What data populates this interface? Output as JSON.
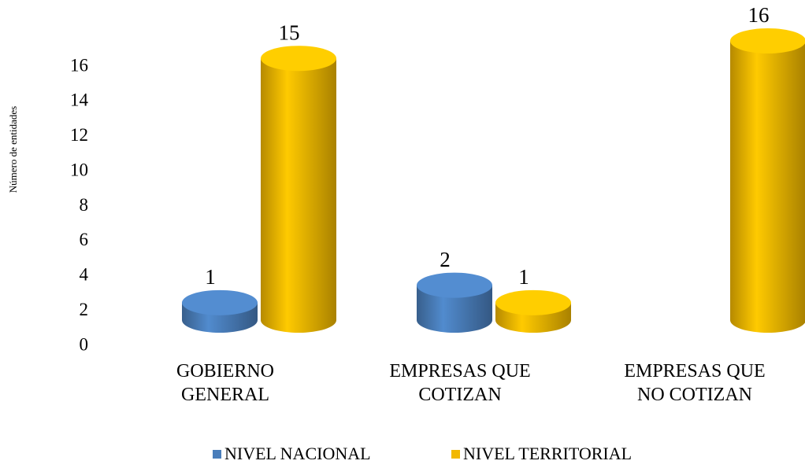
{
  "chart_data": {
    "type": "bar3d",
    "y_label": "Número de entidades",
    "categories": [
      "GOBIERNO GENERAL",
      "EMPRESAS QUE COTIZAN",
      "EMPRESAS QUE NO COTIZAN"
    ],
    "series": [
      {
        "name": "NIVEL NACIONAL",
        "color": "#4a7ebb",
        "values": [
          1,
          2,
          null
        ]
      },
      {
        "name": "NIVEL TERRITORIAL",
        "color": "#f2b800",
        "values": [
          15,
          1,
          16
        ]
      }
    ],
    "ylim": [
      0,
      16
    ],
    "yticks": [
      0,
      2,
      4,
      6,
      8,
      10,
      12,
      14,
      16
    ],
    "legend": "bottom"
  }
}
